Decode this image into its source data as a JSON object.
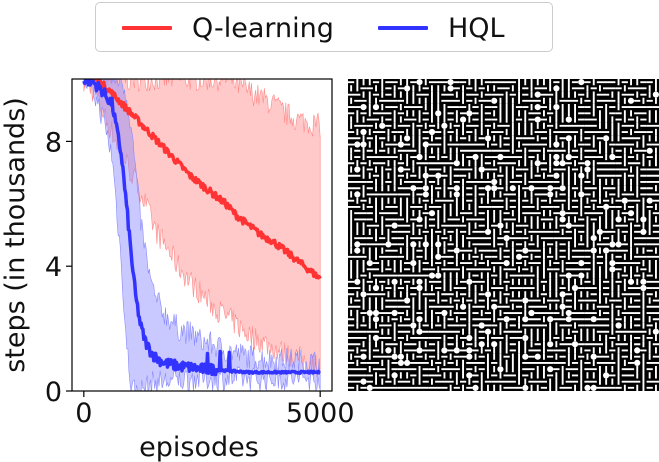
{
  "chart_data": {
    "type": "line",
    "xlabel": "episodes",
    "ylabel": "steps (in thousands)",
    "xlim": [
      -250,
      5250
    ],
    "ylim": [
      0,
      10
    ],
    "xticks": [
      0,
      5000
    ],
    "xtick_labels": [
      "0",
      "5000"
    ],
    "yticks": [
      0,
      4,
      8
    ],
    "ytick_labels": [
      "0",
      "4",
      "8"
    ],
    "legend_position": "top-center, above plot",
    "grid": false,
    "series": [
      {
        "name": "Q-learning",
        "color": "#ff3333",
        "band_color": "#ff8888",
        "x": [
          0,
          250,
          500,
          750,
          1000,
          1250,
          1500,
          1750,
          2000,
          2250,
          2500,
          2750,
          3000,
          3250,
          3500,
          3750,
          4000,
          4250,
          4500,
          4750,
          5000
        ],
        "mean": [
          10,
          10,
          9.7,
          9.3,
          8.9,
          8.5,
          8.1,
          7.7,
          7.3,
          6.9,
          6.6,
          6.3,
          6.0,
          5.6,
          5.3,
          5.0,
          4.8,
          4.5,
          4.2,
          3.9,
          3.6
        ],
        "upper": [
          10,
          10,
          10,
          10,
          10,
          10,
          10,
          10,
          10,
          10,
          10,
          10,
          10,
          9.8,
          9.6,
          9.4,
          9.2,
          8.9,
          8.7,
          8.6,
          8.5
        ],
        "lower": [
          10,
          9.5,
          8.6,
          7.8,
          7.0,
          6.2,
          5.2,
          4.6,
          4.0,
          3.5,
          3.1,
          2.7,
          2.4,
          2.1,
          1.8,
          1.6,
          1.4,
          1.2,
          1.1,
          0.9,
          0.8
        ]
      },
      {
        "name": "HQL",
        "color": "#3333ff",
        "band_color": "#8888ff",
        "x": [
          0,
          200,
          400,
          600,
          800,
          900,
          1000,
          1100,
          1200,
          1300,
          1400,
          1500,
          1700,
          2000,
          2300,
          2500,
          2700,
          3000,
          3500,
          4000,
          4500,
          5000
        ],
        "mean": [
          10,
          9.9,
          9.6,
          9.2,
          7.5,
          6.0,
          4.4,
          3.0,
          2.1,
          1.6,
          1.3,
          1.1,
          0.9,
          0.8,
          0.75,
          0.7,
          0.7,
          0.65,
          0.6,
          0.6,
          0.6,
          0.6
        ],
        "upper": [
          10,
          10,
          10,
          10,
          10,
          9.5,
          8.5,
          7.0,
          5.5,
          4.5,
          3.6,
          3.0,
          2.5,
          2.0,
          1.8,
          1.6,
          1.5,
          1.3,
          1.1,
          1.0,
          1.0,
          0.9
        ],
        "lower": [
          10,
          9.6,
          8.8,
          7.5,
          4.0,
          1.5,
          0.2,
          0.0,
          0.0,
          0.1,
          0.2,
          0.3,
          0.3,
          0.35,
          0.4,
          0.4,
          0.4,
          0.4,
          0.4,
          0.4,
          0.4,
          0.4
        ]
      }
    ]
  },
  "maze": {
    "rows": 50,
    "cols": 50,
    "wall_color": "#000000",
    "path_color": "#ffffff"
  }
}
